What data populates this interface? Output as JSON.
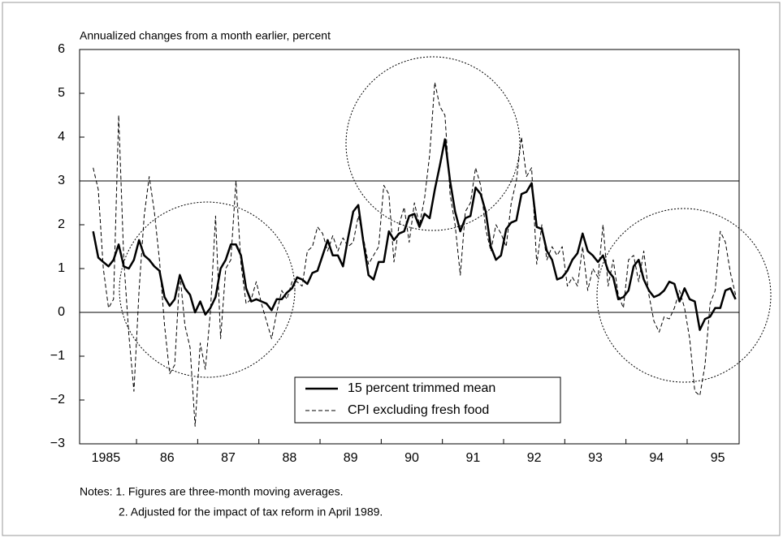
{
  "chart_data": {
    "type": "line",
    "subtitle": "Annualized changes from a month earlier, percent",
    "notes": [
      "Notes: 1. Figures are three-month moving averages.",
      "2. Adjusted for the impact of tax reform in April 1989."
    ],
    "x": [
      1985.292,
      1985.375,
      1985.458,
      1985.542,
      1985.625,
      1985.708,
      1985.792,
      1985.875,
      1985.958,
      1986.042,
      1986.125,
      1986.208,
      1986.292,
      1986.375,
      1986.458,
      1986.542,
      1986.625,
      1986.708,
      1986.792,
      1986.875,
      1986.958,
      1987.042,
      1987.125,
      1987.208,
      1987.292,
      1987.375,
      1987.458,
      1987.542,
      1987.625,
      1987.708,
      1987.792,
      1987.875,
      1987.958,
      1988.042,
      1988.125,
      1988.208,
      1988.292,
      1988.375,
      1988.458,
      1988.542,
      1988.625,
      1988.708,
      1988.792,
      1988.875,
      1988.958,
      1989.042,
      1989.125,
      1989.208,
      1989.292,
      1989.375,
      1989.458,
      1989.542,
      1989.625,
      1989.708,
      1989.792,
      1989.875,
      1989.958,
      1990.042,
      1990.125,
      1990.208,
      1990.292,
      1990.375,
      1990.458,
      1990.542,
      1990.625,
      1990.708,
      1990.792,
      1990.875,
      1990.958,
      1991.042,
      1991.125,
      1991.208,
      1991.292,
      1991.375,
      1991.458,
      1991.542,
      1991.625,
      1991.708,
      1991.792,
      1991.875,
      1991.958,
      1992.042,
      1992.125,
      1992.208,
      1992.292,
      1992.375,
      1992.458,
      1992.542,
      1992.625,
      1992.708,
      1992.792,
      1992.875,
      1992.958,
      1993.042,
      1993.125,
      1993.208,
      1993.292,
      1993.375,
      1993.458,
      1993.542,
      1993.625,
      1993.708,
      1993.792,
      1993.875,
      1993.958,
      1994.042,
      1994.125,
      1994.208,
      1994.292,
      1994.375,
      1994.458,
      1994.542,
      1994.625,
      1994.708,
      1994.792,
      1994.875,
      1994.958,
      1995.042,
      1995.125,
      1995.208,
      1995.292,
      1995.375,
      1995.458,
      1995.542,
      1995.625,
      1995.708,
      1995.792
    ],
    "series": [
      {
        "name": "15 percent trimmed mean",
        "color": "#000000",
        "dashed": false,
        "values": [
          1.85,
          1.25,
          1.15,
          1.05,
          1.2,
          1.55,
          1.05,
          1.0,
          1.2,
          1.65,
          1.3,
          1.2,
          1.05,
          0.95,
          0.35,
          0.15,
          0.3,
          0.85,
          0.55,
          0.4,
          0.0,
          0.25,
          -0.05,
          0.1,
          0.35,
          1.0,
          1.2,
          1.55,
          1.55,
          1.3,
          0.55,
          0.25,
          0.3,
          0.25,
          0.2,
          0.05,
          0.3,
          0.3,
          0.45,
          0.55,
          0.8,
          0.75,
          0.65,
          0.9,
          0.95,
          1.3,
          1.65,
          1.3,
          1.3,
          1.05,
          1.7,
          2.3,
          2.45,
          1.6,
          0.85,
          0.75,
          1.15,
          1.15,
          1.85,
          1.65,
          1.8,
          1.85,
          2.2,
          2.25,
          1.95,
          2.25,
          2.15,
          2.8,
          3.35,
          3.95,
          3.0,
          2.3,
          1.85,
          2.15,
          2.2,
          2.85,
          2.7,
          2.3,
          1.5,
          1.2,
          1.3,
          1.9,
          2.05,
          2.1,
          2.7,
          2.75,
          2.95,
          1.95,
          1.9,
          1.4,
          1.2,
          0.75,
          0.8,
          0.95,
          1.2,
          1.35,
          1.8,
          1.4,
          1.3,
          1.15,
          1.3,
          0.95,
          0.8,
          0.3,
          0.35,
          0.5,
          1.05,
          1.2,
          0.75,
          0.5,
          0.35,
          0.4,
          0.5,
          0.7,
          0.65,
          0.25,
          0.55,
          0.3,
          0.25,
          -0.4,
          -0.15,
          -0.1,
          0.1,
          0.1,
          0.5,
          0.55,
          0.3
        ]
      },
      {
        "name": "CPI excluding fresh food",
        "color": "#000000",
        "dashed": true,
        "values": [
          3.3,
          2.8,
          1.0,
          0.1,
          0.3,
          4.5,
          1.2,
          -0.5,
          -1.8,
          0.5,
          2.2,
          3.1,
          2.3,
          1.2,
          -0.3,
          -1.4,
          -1.2,
          0.9,
          -0.3,
          -0.8,
          -2.6,
          -0.7,
          -1.3,
          0.0,
          2.2,
          -0.6,
          1.0,
          1.2,
          3.0,
          1.1,
          0.2,
          0.3,
          0.7,
          0.2,
          -0.2,
          -0.6,
          0.0,
          0.5,
          0.3,
          0.7,
          0.7,
          0.6,
          1.4,
          1.5,
          1.95,
          1.8,
          1.4,
          1.75,
          1.4,
          1.7,
          1.5,
          1.6,
          2.2,
          1.7,
          1.1,
          1.3,
          1.5,
          2.9,
          2.7,
          1.15,
          2.0,
          2.4,
          1.6,
          2.5,
          2.0,
          2.6,
          3.6,
          5.25,
          4.7,
          4.5,
          2.7,
          2.0,
          0.85,
          2.3,
          2.5,
          3.3,
          2.9,
          1.9,
          1.4,
          2.0,
          1.8,
          1.5,
          2.5,
          3.0,
          4.0,
          3.1,
          3.3,
          1.1,
          2.0,
          1.2,
          1.5,
          1.3,
          1.5,
          0.6,
          0.8,
          0.6,
          1.5,
          0.5,
          1.0,
          0.8,
          2.0,
          0.6,
          1.2,
          0.4,
          0.1,
          1.2,
          1.3,
          0.7,
          1.4,
          0.4,
          -0.2,
          -0.45,
          -0.1,
          -0.15,
          0.1,
          0.5,
          0.1,
          -0.6,
          -1.8,
          -1.9,
          -1.2,
          0.2,
          0.5,
          1.85,
          1.6,
          0.9,
          0.4
        ]
      }
    ],
    "xlim": [
      1985.07,
      1995.85
    ],
    "xticks": [
      {
        "value": 1985.5,
        "label": "1985"
      },
      {
        "value": 1986.5,
        "label": "86"
      },
      {
        "value": 1987.5,
        "label": "87"
      },
      {
        "value": 1988.5,
        "label": "88"
      },
      {
        "value": 1989.5,
        "label": "89"
      },
      {
        "value": 1990.5,
        "label": "90"
      },
      {
        "value": 1991.5,
        "label": "91"
      },
      {
        "value": 1992.5,
        "label": "92"
      },
      {
        "value": 1993.5,
        "label": "93"
      },
      {
        "value": 1994.5,
        "label": "94"
      },
      {
        "value": 1995.5,
        "label": "95"
      }
    ],
    "ylim": [
      -3,
      6
    ],
    "yticks": [
      {
        "value": -3,
        "label": "−3"
      },
      {
        "value": -2,
        "label": "−2"
      },
      {
        "value": -1,
        "label": "−1"
      },
      0,
      1,
      2,
      3,
      4,
      5,
      6
    ],
    "hlines": [
      0,
      3
    ]
  }
}
